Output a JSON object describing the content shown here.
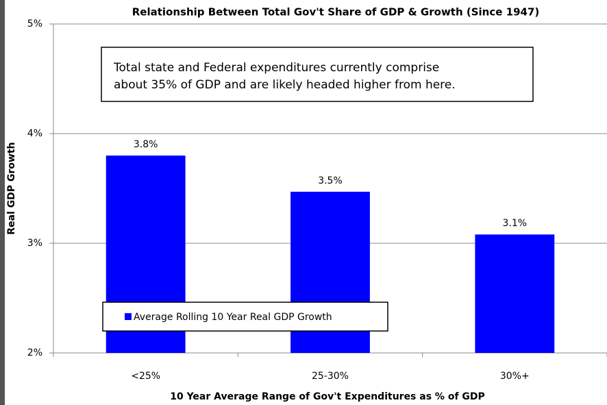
{
  "chart_data": {
    "type": "bar",
    "title": "Relationship Between Total Gov't Share of GDP & Growth (Since 1947)",
    "annotation": [
      "Total state and Federal expenditures currently comprise",
      "about 35% of GDP and are likely headed higher from here."
    ],
    "x_label": "10  Year Average Range of Gov't Expenditures as % of GDP",
    "y_label": "Real GDP Growth",
    "categories": [
      "<25%",
      "25-30%",
      "30%+"
    ],
    "series": [
      {
        "name": "Average Rolling 10 Year Real GDP Growth",
        "color": "#0000ff",
        "values": [
          3.8,
          3.47,
          3.08
        ],
        "value_labels": [
          "3.8%",
          "3.5%",
          "3.1%"
        ]
      }
    ],
    "ylim": [
      2,
      5
    ],
    "yticks": [
      {
        "value": 2,
        "label": "2%"
      },
      {
        "value": 3,
        "label": "3%"
      },
      {
        "value": 4,
        "label": "4%"
      },
      {
        "value": 5,
        "label": "5%"
      }
    ],
    "grid": true
  }
}
